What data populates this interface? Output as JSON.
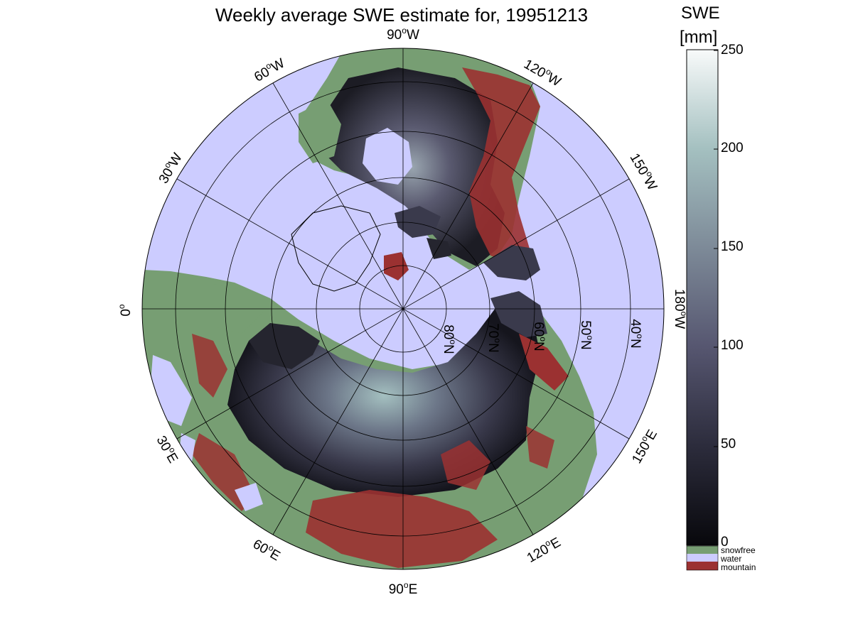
{
  "title": "Weekly average SWE estimate for, 19951213",
  "colorbar": {
    "title": "SWE",
    "unit": "[mm]",
    "ticks": [
      "0",
      "50",
      "100",
      "150",
      "200",
      "250"
    ],
    "range": [
      0,
      250
    ],
    "gradient": [
      "#08080c",
      "#2c2c3c",
      "#565670",
      "#7d8a98",
      "#a4c0c0",
      "#f8fafa"
    ]
  },
  "legend": [
    {
      "label": "snowfree",
      "color": "#779e73"
    },
    {
      "label": "water",
      "color": "#ccccff"
    },
    {
      "label": "mountain",
      "color": "#9b3131"
    }
  ],
  "map": {
    "projection": "north-polar-stereographic",
    "ocean_color": "#ccccff",
    "snowfree_color": "#779e73",
    "mountain_color": "#9b3131",
    "longitude_labels": [
      {
        "lon": "0",
        "sup": "o",
        "dir": ""
      },
      {
        "lon": "30",
        "sup": "o",
        "dir": "W"
      },
      {
        "lon": "60",
        "sup": "o",
        "dir": "W"
      },
      {
        "lon": "90",
        "sup": "o",
        "dir": "W"
      },
      {
        "lon": "120",
        "sup": "o",
        "dir": "W"
      },
      {
        "lon": "150",
        "sup": "o",
        "dir": "W"
      },
      {
        "lon": "180",
        "sup": "o",
        "dir": "W"
      },
      {
        "lon": "150",
        "sup": "o",
        "dir": "E"
      },
      {
        "lon": "120",
        "sup": "o",
        "dir": "E"
      },
      {
        "lon": "90",
        "sup": "o",
        "dir": "E"
      },
      {
        "lon": "60",
        "sup": "o",
        "dir": "E"
      },
      {
        "lon": "30",
        "sup": "o",
        "dir": "E"
      }
    ],
    "latitude_labels": [
      {
        "lat": "80",
        "sup": "o",
        "dir": "N"
      },
      {
        "lat": "70",
        "sup": "o",
        "dir": "N"
      },
      {
        "lat": "60",
        "sup": "o",
        "dir": "N"
      },
      {
        "lat": "50",
        "sup": "o",
        "dir": "N"
      },
      {
        "lat": "40",
        "sup": "o",
        "dir": "N"
      }
    ]
  }
}
